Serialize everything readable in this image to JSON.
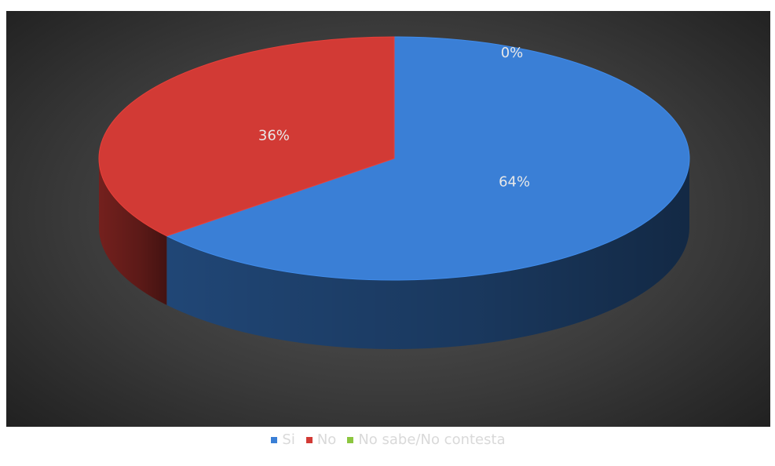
{
  "chart_data": {
    "type": "pie",
    "categories": [
      "Si",
      "No",
      "No sabe/No contesta"
    ],
    "values": [
      64,
      36,
      0
    ],
    "unit": "%",
    "data_labels": [
      "64%",
      "36%",
      "0%"
    ],
    "colors": [
      "#3a7fd6",
      "#d23a35",
      "#8cc63f"
    ],
    "legend_placement": "bottom",
    "title": ""
  }
}
